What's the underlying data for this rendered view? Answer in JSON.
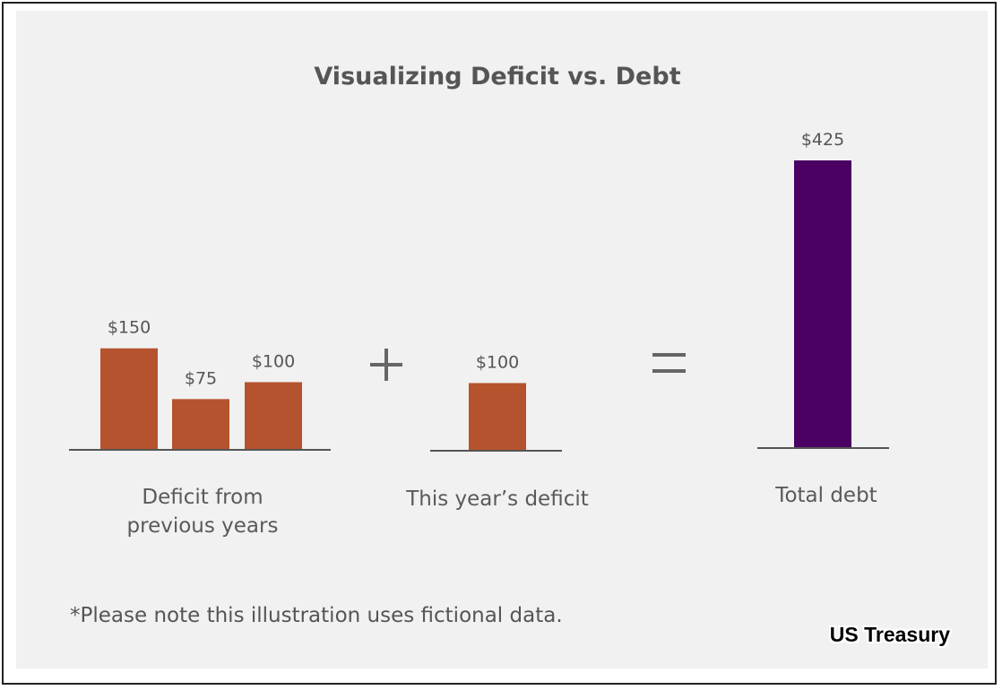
{
  "chart_data": {
    "type": "bar",
    "title": "Visualizing Deficit vs. Debt",
    "currency_prefix": "$",
    "groups": [
      {
        "label_lines": [
          "Deficit from",
          "previous years"
        ],
        "values": [
          150,
          75,
          100
        ],
        "color": "#b5532f"
      },
      {
        "label_lines": [
          "This year’s deficit"
        ],
        "values": [
          100
        ],
        "color": "#b5532f"
      },
      {
        "label_lines": [
          "Total debt"
        ],
        "values": [
          425
        ],
        "color": "#4b0063"
      }
    ],
    "operators": [
      "+",
      "="
    ],
    "ylim": [
      0,
      425
    ],
    "footnote": "*Please note this illustration uses fictional data."
  },
  "watermark": "US Treasury",
  "colors": {
    "deficit": "#b5532f",
    "debt": "#4b0063",
    "background": "#f1f1f1",
    "text": "#555555"
  }
}
